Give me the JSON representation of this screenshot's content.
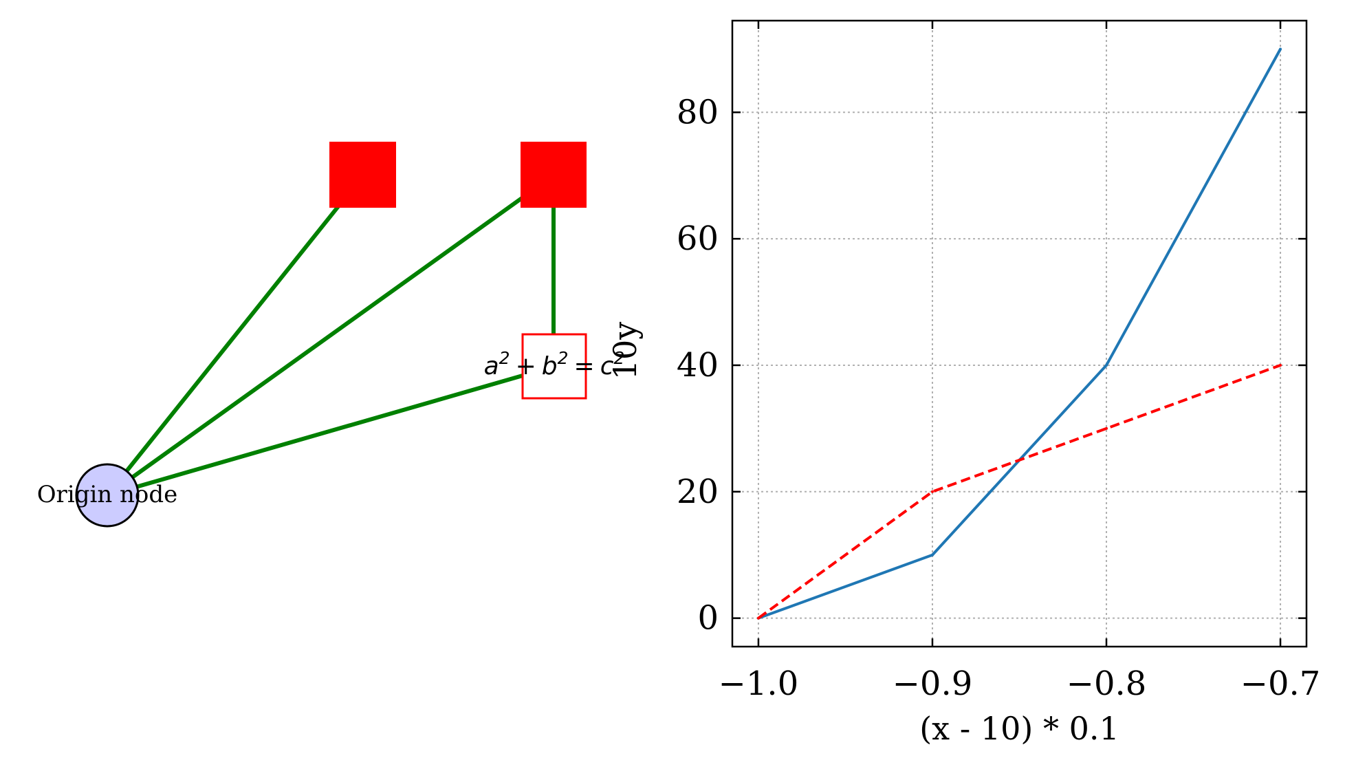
{
  "figure": {
    "diagram": {
      "nodes": [
        {
          "id": "origin",
          "label": "Origin node",
          "shape": "circle",
          "fill": "#ccccff",
          "stroke": "#000000"
        },
        {
          "id": "square-left",
          "label": "",
          "shape": "square",
          "fill": "#ff0000"
        },
        {
          "id": "square-right",
          "label": "",
          "shape": "square",
          "fill": "#ff0000"
        },
        {
          "id": "formula-box",
          "shape": "square",
          "fill": "#ffffff",
          "stroke": "#ff0000",
          "formula": {
            "a": "a",
            "b": "b",
            "c": "c",
            "exp": "2",
            "plus": "+",
            "equals": "="
          }
        }
      ],
      "edges": [
        {
          "from": "origin",
          "to": "square-left"
        },
        {
          "from": "origin",
          "to": "square-right"
        },
        {
          "from": "origin",
          "to": "formula-box"
        },
        {
          "from": "square-right",
          "to": "formula-box"
        }
      ],
      "edge_color": "#008000"
    }
  },
  "chart_data": {
    "type": "line",
    "title": "",
    "xlabel": "(x - 10) * 0.1",
    "ylabel": "10y",
    "x": [
      -1.0,
      -0.9,
      -0.8,
      -0.7
    ],
    "series": [
      {
        "values": [
          0,
          10,
          40,
          90
        ],
        "color": "#1f77b4",
        "style": "solid"
      },
      {
        "values": [
          0,
          20,
          30,
          40
        ],
        "color": "#ff0000",
        "style": "dashed"
      }
    ],
    "xlim": [
      -1.015,
      -0.685
    ],
    "ylim": [
      -4.5,
      94.5
    ],
    "xticks": [
      -1.0,
      -0.9,
      -0.8,
      -0.7
    ],
    "xtick_labels": [
      "−1.0",
      "−0.9",
      "−0.8",
      "−0.7"
    ],
    "yticks": [
      0,
      20,
      40,
      60,
      80
    ],
    "ytick_labels": [
      "0",
      "20",
      "40",
      "60",
      "80"
    ],
    "grid": true,
    "grid_color": "#b0b0b0",
    "legend": false
  }
}
